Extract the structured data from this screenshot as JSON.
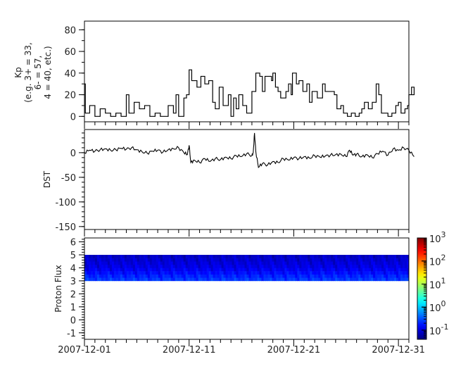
{
  "x_axis": {
    "range": [
      "2007-12-01",
      "2008-01-01"
    ],
    "tick_labels": [
      "2007-12-01",
      "2007-12-11",
      "2007-12-21",
      "2007-12-31"
    ],
    "minor_tick": "1 day"
  },
  "chart_data": [
    {
      "type": "line",
      "step": true,
      "ylabel_lines": [
        "Kp",
        "(e.g. 3+ = 33,",
        "6- = 57,",
        "4 = 40, etc.)"
      ],
      "ylim": [
        -5,
        88
      ],
      "yticks": [
        0,
        20,
        40,
        60,
        80
      ],
      "color": "#000000",
      "points": [
        [
          "2007-12-01 00:00",
          30
        ],
        [
          "2007-12-01 02:00",
          3
        ],
        [
          "2007-12-01 12:00",
          10
        ],
        [
          "2007-12-02 00:00",
          0
        ],
        [
          "2007-12-02 12:00",
          7
        ],
        [
          "2007-12-03 00:00",
          3
        ],
        [
          "2007-12-03 12:00",
          0
        ],
        [
          "2007-12-04 00:00",
          3
        ],
        [
          "2007-12-04 12:00",
          0
        ],
        [
          "2007-12-05 00:00",
          20
        ],
        [
          "2007-12-05 06:00",
          3
        ],
        [
          "2007-12-05 18:00",
          13
        ],
        [
          "2007-12-06 06:00",
          7
        ],
        [
          "2007-12-06 18:00",
          10
        ],
        [
          "2007-12-07 06:00",
          0
        ],
        [
          "2007-12-07 18:00",
          3
        ],
        [
          "2007-12-08 06:00",
          0
        ],
        [
          "2007-12-09 00:00",
          10
        ],
        [
          "2007-12-09 12:00",
          3
        ],
        [
          "2007-12-09 18:00",
          20
        ],
        [
          "2007-12-10 00:00",
          0
        ],
        [
          "2007-12-10 12:00",
          17
        ],
        [
          "2007-12-10 18:00",
          20
        ],
        [
          "2007-12-11 00:00",
          43
        ],
        [
          "2007-12-11 06:00",
          33
        ],
        [
          "2007-12-11 18:00",
          27
        ],
        [
          "2007-12-12 03:00",
          37
        ],
        [
          "2007-12-12 12:00",
          30
        ],
        [
          "2007-12-12 21:00",
          33
        ],
        [
          "2007-12-13 06:00",
          13
        ],
        [
          "2007-12-13 12:00",
          7
        ],
        [
          "2007-12-13 21:00",
          27
        ],
        [
          "2007-12-14 06:00",
          10
        ],
        [
          "2007-12-14 18:00",
          20
        ],
        [
          "2007-12-15 00:00",
          0
        ],
        [
          "2007-12-15 06:00",
          17
        ],
        [
          "2007-12-15 12:00",
          7
        ],
        [
          "2007-12-15 18:00",
          20
        ],
        [
          "2007-12-16 03:00",
          10
        ],
        [
          "2007-12-16 12:00",
          3
        ],
        [
          "2007-12-17 00:00",
          23
        ],
        [
          "2007-12-17 09:00",
          40
        ],
        [
          "2007-12-17 18:00",
          37
        ],
        [
          "2007-12-18 00:00",
          23
        ],
        [
          "2007-12-18 06:00",
          37
        ],
        [
          "2007-12-18 21:00",
          33
        ],
        [
          "2007-12-19 00:00",
          40
        ],
        [
          "2007-12-19 06:00",
          27
        ],
        [
          "2007-12-19 12:00",
          23
        ],
        [
          "2007-12-19 18:00",
          17
        ],
        [
          "2007-12-20 06:00",
          23
        ],
        [
          "2007-12-20 12:00",
          30
        ],
        [
          "2007-12-20 18:00",
          20
        ],
        [
          "2007-12-20 21:00",
          40
        ],
        [
          "2007-12-21 06:00",
          30
        ],
        [
          "2007-12-21 12:00",
          33
        ],
        [
          "2007-12-21 21:00",
          23
        ],
        [
          "2007-12-22 06:00",
          30
        ],
        [
          "2007-12-22 12:00",
          13
        ],
        [
          "2007-12-22 18:00",
          23
        ],
        [
          "2007-12-23 06:00",
          17
        ],
        [
          "2007-12-23 18:00",
          30
        ],
        [
          "2007-12-24 00:00",
          23
        ],
        [
          "2007-12-24 21:00",
          20
        ],
        [
          "2007-12-25 03:00",
          7
        ],
        [
          "2007-12-25 12:00",
          10
        ],
        [
          "2007-12-25 18:00",
          3
        ],
        [
          "2007-12-26 03:00",
          0
        ],
        [
          "2007-12-26 12:00",
          3
        ],
        [
          "2007-12-26 21:00",
          0
        ],
        [
          "2007-12-27 06:00",
          3
        ],
        [
          "2007-12-27 12:00",
          7
        ],
        [
          "2007-12-27 18:00",
          13
        ],
        [
          "2007-12-28 03:00",
          7
        ],
        [
          "2007-12-28 12:00",
          13
        ],
        [
          "2007-12-28 21:00",
          30
        ],
        [
          "2007-12-29 03:00",
          20
        ],
        [
          "2007-12-29 09:00",
          3
        ],
        [
          "2007-12-30 00:00",
          0
        ],
        [
          "2007-12-30 09:00",
          3
        ],
        [
          "2007-12-30 18:00",
          10
        ],
        [
          "2007-12-31 00:00",
          13
        ],
        [
          "2007-12-31 06:00",
          3
        ],
        [
          "2007-12-31 15:00",
          7
        ],
        [
          "2007-12-31 21:00",
          10
        ],
        [
          "2008-01-01 00:00",
          20
        ],
        [
          "2008-01-01 06:00",
          27
        ],
        [
          "2008-01-01 12:00",
          20
        ]
      ]
    },
    {
      "type": "line",
      "ylabel": "DST",
      "ylim": [
        -156,
        47
      ],
      "yticks": [
        0,
        -50,
        -100,
        -150
      ],
      "color": "#000000",
      "points": [
        [
          "2007-12-01 00:00",
          0
        ],
        [
          "2007-12-01 12:00",
          5
        ],
        [
          "2007-12-02 00:00",
          3
        ],
        [
          "2007-12-02 12:00",
          6
        ],
        [
          "2007-12-03 00:00",
          8
        ],
        [
          "2007-12-03 12:00",
          5
        ],
        [
          "2007-12-04 00:00",
          6
        ],
        [
          "2007-12-04 12:00",
          9
        ],
        [
          "2007-12-05 00:00",
          7
        ],
        [
          "2007-12-05 12:00",
          10
        ],
        [
          "2007-12-06 00:00",
          6
        ],
        [
          "2007-12-06 12:00",
          2
        ],
        [
          "2007-12-07 00:00",
          -1
        ],
        [
          "2007-12-07 12:00",
          3
        ],
        [
          "2007-12-08 00:00",
          5
        ],
        [
          "2007-12-08 12:00",
          1
        ],
        [
          "2007-12-09 00:00",
          6
        ],
        [
          "2007-12-09 12:00",
          8
        ],
        [
          "2007-12-10 00:00",
          10
        ],
        [
          "2007-12-10 12:00",
          0
        ],
        [
          "2007-12-10 20:00",
          -4
        ],
        [
          "2007-12-11 00:00",
          15
        ],
        [
          "2007-12-11 04:00",
          -20
        ],
        [
          "2007-12-11 12:00",
          -15
        ],
        [
          "2007-12-12 00:00",
          -20
        ],
        [
          "2007-12-12 12:00",
          -12
        ],
        [
          "2007-12-13 00:00",
          -18
        ],
        [
          "2007-12-13 12:00",
          -12
        ],
        [
          "2007-12-14 00:00",
          -14
        ],
        [
          "2007-12-14 12:00",
          -9
        ],
        [
          "2007-12-15 00:00",
          -12
        ],
        [
          "2007-12-15 12:00",
          -6
        ],
        [
          "2007-12-16 00:00",
          -8
        ],
        [
          "2007-12-16 12:00",
          -2
        ],
        [
          "2007-12-17 00:00",
          -6
        ],
        [
          "2007-12-17 03:00",
          0
        ],
        [
          "2007-12-17 06:00",
          40
        ],
        [
          "2007-12-17 09:00",
          2
        ],
        [
          "2007-12-17 15:00",
          -30
        ],
        [
          "2007-12-18 00:00",
          -22
        ],
        [
          "2007-12-18 12:00",
          -25
        ],
        [
          "2007-12-19 00:00",
          -18
        ],
        [
          "2007-12-19 12:00",
          -20
        ],
        [
          "2007-12-20 00:00",
          -12
        ],
        [
          "2007-12-20 12:00",
          -15
        ],
        [
          "2007-12-21 00:00",
          -10
        ],
        [
          "2007-12-21 12:00",
          -12
        ],
        [
          "2007-12-22 00:00",
          -8
        ],
        [
          "2007-12-22 12:00",
          -11
        ],
        [
          "2007-12-23 00:00",
          -6
        ],
        [
          "2007-12-23 12:00",
          -9
        ],
        [
          "2007-12-24 00:00",
          -7
        ],
        [
          "2007-12-24 12:00",
          -5
        ],
        [
          "2007-12-25 00:00",
          -4
        ],
        [
          "2007-12-25 12:00",
          -3
        ],
        [
          "2007-12-26 00:00",
          -8
        ],
        [
          "2007-12-26 08:00",
          5
        ],
        [
          "2007-12-26 16:00",
          -5
        ],
        [
          "2007-12-27 00:00",
          -3
        ],
        [
          "2007-12-27 12:00",
          -8
        ],
        [
          "2007-12-28 00:00",
          -4
        ],
        [
          "2007-12-28 12:00",
          -10
        ],
        [
          "2007-12-29 00:00",
          -2
        ],
        [
          "2007-12-29 12:00",
          3
        ],
        [
          "2007-12-30 00:00",
          -5
        ],
        [
          "2007-12-30 12:00",
          8
        ],
        [
          "2007-12-31 00:00",
          5
        ],
        [
          "2007-12-31 12:00",
          10
        ],
        [
          "2008-01-01 00:00",
          5
        ],
        [
          "2008-01-01 12:00",
          -8
        ]
      ]
    },
    {
      "type": "heatmap",
      "ylabel": "Proton Flux",
      "ylim": [
        -1.5,
        6.3
      ],
      "yticks": [
        -1,
        0,
        1,
        2,
        3,
        4,
        5,
        6
      ],
      "y_bins": [
        3.0,
        3.25,
        3.5,
        3.75,
        4.0,
        4.25,
        4.5,
        4.75,
        5.0
      ],
      "bin_values": [
        0.25,
        0.2,
        0.16,
        0.13,
        0.11,
        0.1,
        0.09,
        0.08
      ],
      "colorbar": {
        "scale": "log",
        "range": [
          0.04,
          1000
        ],
        "colormap": "jet",
        "ticks": [
          {
            "value": 1000,
            "base": "10",
            "exp": "3"
          },
          {
            "value": 100,
            "base": "10",
            "exp": "2"
          },
          {
            "value": 10,
            "base": "10",
            "exp": "1"
          },
          {
            "value": 1,
            "base": "10",
            "exp": "0"
          },
          {
            "value": 0.1,
            "base": "10",
            "exp": "-1"
          }
        ]
      }
    }
  ]
}
